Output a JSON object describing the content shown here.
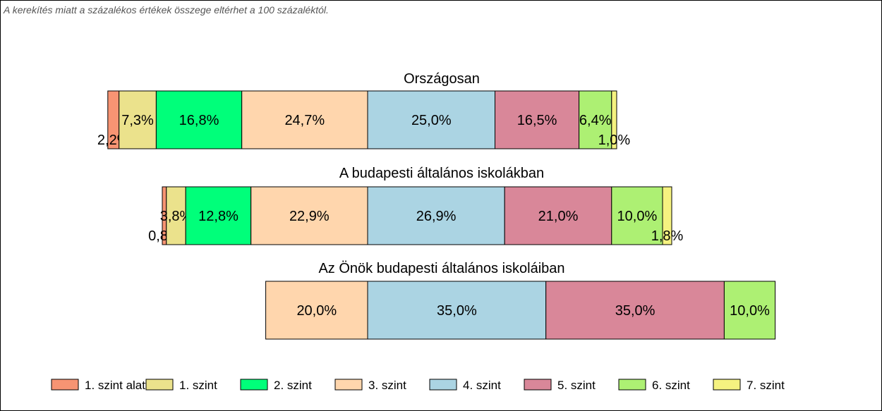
{
  "note": "A kerekítés miatt a  százalékos értékek összege eltérhet a 100 százaléktól.",
  "legend": [
    {
      "label": "1. szint alatti",
      "color": "#F79473"
    },
    {
      "label": "1. szint",
      "color": "#EBE28C"
    },
    {
      "label": "2. szint",
      "color": "#00FF7A"
    },
    {
      "label": "3. szint",
      "color": "#FFD6AD"
    },
    {
      "label": "4. szint",
      "color": "#ABD4E3"
    },
    {
      "label": "5. szint",
      "color": "#D98799"
    },
    {
      "label": "6. szint",
      "color": "#ADF073"
    },
    {
      "label": "7. szint",
      "color": "#F5F280"
    }
  ],
  "chart_data": {
    "type": "bar",
    "orientation": "horizontal-stacked-diverging",
    "center_between": [
      "3. szint",
      "4. szint"
    ],
    "grid": false,
    "legend_position": "bottom",
    "categories": [
      "1. szint alatti",
      "1. szint",
      "2. szint",
      "3. szint",
      "4. szint",
      "5. szint",
      "6. szint",
      "7. szint"
    ],
    "rows": [
      {
        "title": "Országosan",
        "values": [
          2.2,
          7.3,
          16.8,
          24.7,
          25.0,
          16.5,
          6.4,
          1.0
        ],
        "labels": [
          "2,2%",
          "7,3%",
          "16,8%",
          "24,7%",
          "25,0%",
          "16,5%",
          "6,4%",
          "1,0%"
        ]
      },
      {
        "title": "A budapesti általános iskolákban",
        "values": [
          0.8,
          3.8,
          12.8,
          22.9,
          26.9,
          21.0,
          10.0,
          1.8
        ],
        "labels": [
          "0,8%",
          "3,8%",
          "12,8%",
          "22,9%",
          "26,9%",
          "21,0%",
          "10,0%",
          "1,8%"
        ]
      },
      {
        "title": "Az Önök budapesti általános iskoláiban",
        "values": [
          0,
          0,
          0,
          20.0,
          35.0,
          35.0,
          10.0,
          0
        ],
        "labels": [
          "",
          "",
          "",
          "20,0%",
          "35,0%",
          "35,0%",
          "10,0%",
          ""
        ]
      }
    ]
  }
}
